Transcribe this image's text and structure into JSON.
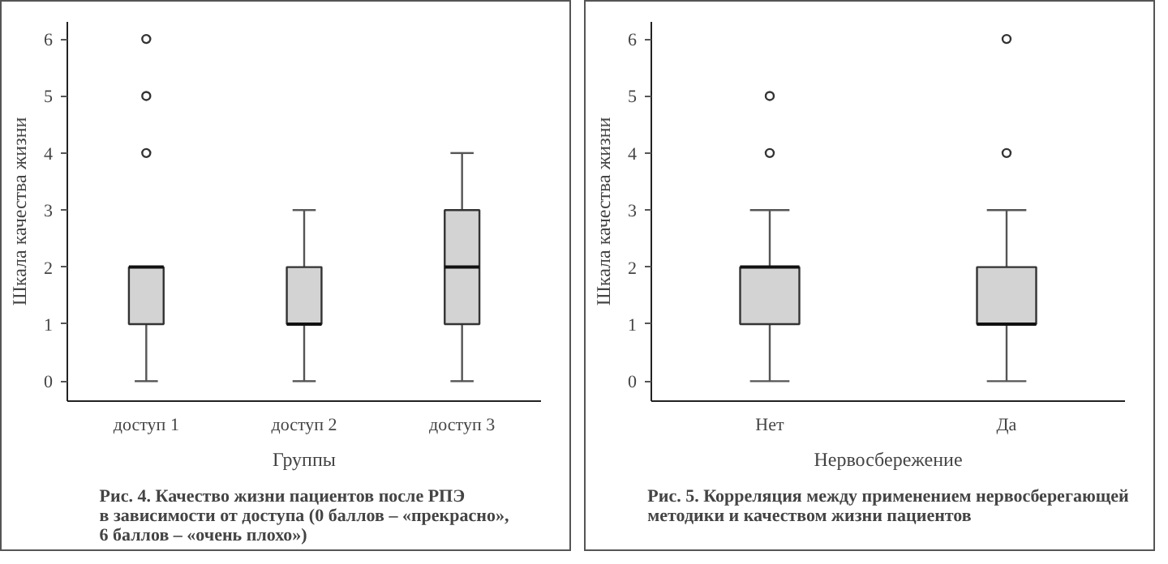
{
  "chart_data": [
    {
      "type": "box",
      "title": "Рис. 4. Качество жизни пациентов после РПЭ\nв зависимости от доступа (0 баллов – «прекрасно»,\n6 баллов – «очень плохо»)",
      "xlabel": "Группы",
      "ylabel": "Шкала качества жизни",
      "categories": [
        "доступ 1",
        "доступ 2",
        "доступ 3"
      ],
      "color": "#d3d3d3",
      "ylim": [
        -0.35,
        6.3
      ],
      "yticks": [
        0,
        1,
        2,
        3,
        4,
        5,
        6
      ],
      "grid": false,
      "boxes": [
        {
          "low": 0,
          "q1": 1,
          "median": 2,
          "q3": 2,
          "high": 2,
          "outliers": [
            4,
            5,
            6
          ]
        },
        {
          "low": 0,
          "q1": 1,
          "median": 1,
          "q3": 2,
          "high": 3
        },
        {
          "low": 0,
          "q1": 1,
          "median": 2,
          "q3": 3,
          "high": 4
        }
      ]
    },
    {
      "type": "box",
      "title": "Рис. 5. Корреляция между применением нервосберегающей\nметодики и качеством жизни пациентов",
      "xlabel": "Нервосбережение",
      "ylabel": "Шкала качества жизни",
      "categories": [
        "Нет",
        "Да"
      ],
      "color": "#d3d3d3",
      "ylim": [
        -0.35,
        6.3
      ],
      "yticks": [
        0,
        1,
        2,
        3,
        4,
        5,
        6
      ],
      "grid": false,
      "boxes": [
        {
          "low": 0,
          "q1": 1,
          "median": 2,
          "q3": 2,
          "high": 3,
          "outliers": [
            4,
            5
          ]
        },
        {
          "low": 0,
          "q1": 1,
          "median": 1,
          "q3": 2,
          "high": 3,
          "outliers": [
            4,
            6
          ]
        }
      ]
    }
  ]
}
